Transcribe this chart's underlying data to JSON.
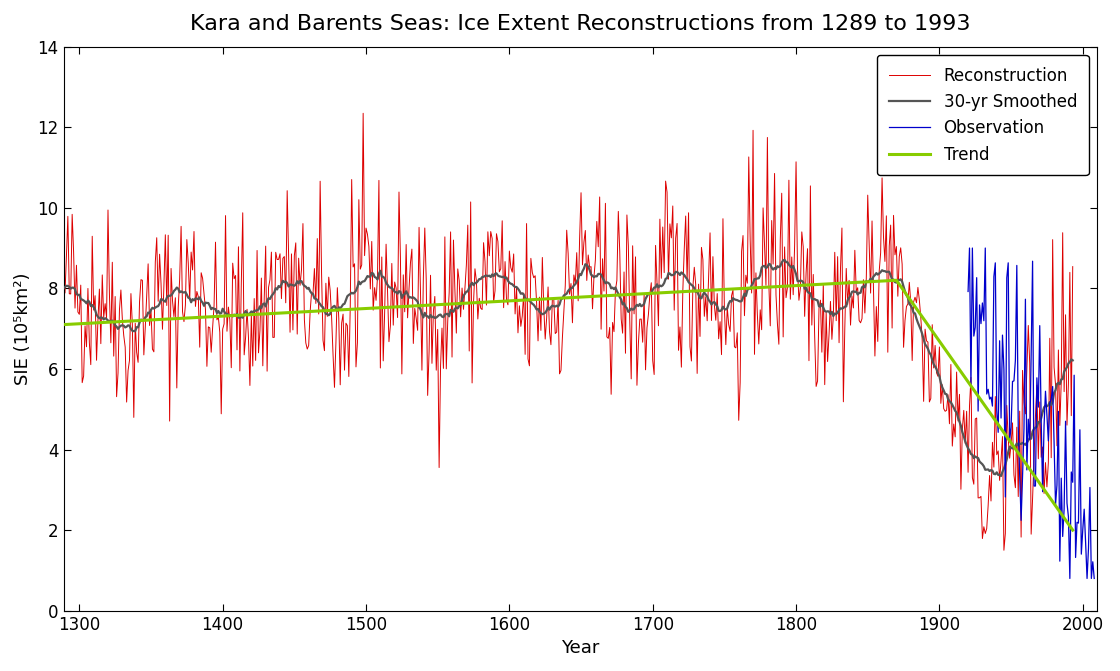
{
  "title": "Kara and Barents Seas: Ice Extent Reconstructions from 1289 to 1993",
  "xlabel": "Year",
  "ylabel": "SIE (10⁵km²)",
  "xlim": [
    1289,
    2010
  ],
  "ylim": [
    0,
    14
  ],
  "yticks": [
    0,
    2,
    4,
    6,
    8,
    10,
    12,
    14
  ],
  "xticks": [
    1300,
    1400,
    1500,
    1600,
    1700,
    1800,
    1900,
    2000
  ],
  "recon_color": "#dd0000",
  "smooth_color": "#555555",
  "obs_color": "#0000cc",
  "trend_color": "#88cc00",
  "recon_start": 1289,
  "recon_end": 1993,
  "obs_start": 1920,
  "obs_end": 2008,
  "seed": 42
}
